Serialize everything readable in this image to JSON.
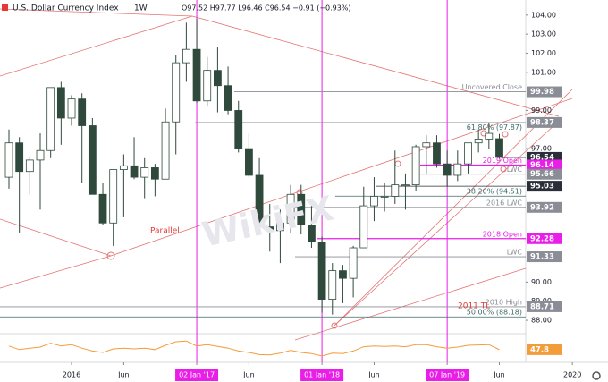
{
  "chart_data": {
    "type": "candlestick",
    "title": "U.S. Dollar Currency Index",
    "interval": "1W",
    "ohlc_text": "O97.52 H97.77 L96.46 C96.54 −0.91 (−0.93%)",
    "watermark": "WikiFX",
    "x": [
      "2015-07",
      "2015-08",
      "2015-09",
      "2015-10",
      "2015-11",
      "2015-12",
      "2016-01",
      "2016-02",
      "2016-03",
      "2016-04",
      "2016-05",
      "2016-06",
      "2016-07",
      "2016-08",
      "2016-09",
      "2016-10",
      "2016-11",
      "2016-12",
      "2017-01",
      "2017-02",
      "2017-03",
      "2017-04",
      "2017-05",
      "2017-06",
      "2017-07",
      "2017-08",
      "2017-09",
      "2017-10",
      "2017-11",
      "2017-12",
      "2018-01",
      "2018-02",
      "2018-03",
      "2018-04",
      "2018-05",
      "2018-06",
      "2018-07",
      "2018-08",
      "2018-09",
      "2018-10",
      "2018-11",
      "2018-12",
      "2019-01",
      "2019-02",
      "2019-03",
      "2019-04",
      "2019-05",
      "2019-06"
    ],
    "open": [
      95.5,
      97.3,
      95.8,
      96.4,
      96.9,
      100.2,
      98.6,
      99.6,
      98.2,
      94.6,
      93.1,
      95.9,
      96.1,
      95.5,
      96.0,
      95.4,
      98.4,
      101.5,
      102.2,
      99.5,
      101.1,
      100.3,
      99.0,
      97.0,
      95.6,
      92.9,
      92.7,
      93.1,
      94.6,
      93.0,
      92.1,
      89.1,
      90.6,
      90.2,
      91.8,
      94.0,
      94.5,
      94.5,
      95.1,
      95.1,
      97.1,
      97.3,
      96.2,
      95.6,
      96.2,
      97.3,
      97.5,
      97.52
    ],
    "high": [
      98.0,
      97.6,
      96.6,
      97.8,
      100.2,
      100.5,
      99.8,
      99.9,
      98.6,
      95.2,
      95.8,
      96.7,
      97.6,
      96.5,
      96.2,
      99.1,
      101.9,
      103.6,
      103.8,
      101.8,
      102.3,
      101.3,
      99.5,
      97.8,
      96.5,
      94.1,
      93.8,
      95.1,
      95.1,
      94.2,
      92.4,
      91.0,
      90.9,
      91.9,
      95.0,
      95.5,
      95.2,
      96.9,
      95.7,
      97.2,
      97.7,
      97.7,
      96.9,
      96.9,
      97.3,
      98.0,
      98.37,
      97.77
    ],
    "low": [
      94.9,
      92.6,
      94.6,
      93.8,
      96.5,
      97.2,
      98.2,
      95.2,
      94.6,
      93.0,
      91.9,
      93.4,
      95.4,
      94.4,
      94.5,
      95.4,
      96.7,
      100.5,
      99.4,
      99.2,
      98.9,
      98.8,
      96.8,
      95.5,
      92.7,
      91.6,
      91.0,
      92.6,
      92.5,
      91.8,
      88.4,
      88.3,
      88.9,
      89.2,
      91.8,
      93.2,
      93.7,
      94.1,
      93.8,
      94.8,
      95.7,
      96.0,
      95.0,
      95.3,
      95.7,
      96.8,
      97.0,
      96.46
    ],
    "close": [
      97.3,
      95.8,
      96.4,
      96.9,
      100.2,
      98.6,
      99.6,
      98.2,
      94.6,
      93.1,
      95.9,
      96.1,
      95.5,
      96.0,
      95.4,
      98.4,
      101.5,
      102.2,
      99.5,
      101.1,
      100.3,
      99.0,
      97.0,
      95.6,
      92.9,
      92.7,
      93.1,
      94.6,
      93.0,
      92.1,
      89.1,
      90.6,
      90.2,
      91.8,
      94.0,
      94.5,
      94.5,
      95.1,
      95.1,
      97.1,
      97.3,
      96.2,
      95.6,
      96.2,
      97.3,
      97.5,
      97.8,
      96.54
    ],
    "up_color": "#ffffff",
    "down_color": "#2f4a3c",
    "ylim": [
      87.3,
      104.6
    ],
    "yticks": [
      {
        "value": 104,
        "label": "104.00"
      },
      {
        "value": 103,
        "label": "103.00"
      },
      {
        "value": 102,
        "label": "102.00"
      },
      {
        "value": 101,
        "label": "101.00"
      },
      {
        "value": 99,
        "label": "99.00"
      },
      {
        "value": 97,
        "label": "97.00"
      },
      {
        "value": 90,
        "label": "90.00"
      },
      {
        "value": 89,
        "label": "89.00"
      },
      {
        "value": 88,
        "label": "88.00"
      }
    ],
    "xticks": [
      {
        "value": "2016-01",
        "label": "2016"
      },
      {
        "value": "2016-06",
        "label": "Jun"
      },
      {
        "value": "2017-01",
        "label": "02 Jan '17",
        "highlight": true
      },
      {
        "value": "2017-06",
        "label": "Jun"
      },
      {
        "value": "2018-01",
        "label": "01 Jan '18",
        "highlight": true
      },
      {
        "value": "2018-06",
        "label": "Jun"
      },
      {
        "value": "2019-01",
        "label": "07 Jan '19",
        "highlight": true
      },
      {
        "value": "2019-06",
        "label": "Jun"
      },
      {
        "value": "2020-01",
        "label": "2020"
      }
    ],
    "levels": [
      {
        "name": "Uncovered Close",
        "value": 99.98,
        "color": "#8a8d96"
      },
      {
        "value": 98.37,
        "color": "#8a8d96"
      },
      {
        "name": "61.80% (97.87)",
        "value": 97.87,
        "color": "#3d6b6b"
      },
      {
        "value": 96.54,
        "color": "#2a2e39"
      },
      {
        "name": "2019 Open",
        "value": 96.14,
        "color": "#e91ee8"
      },
      {
        "name": "LWC",
        "value": 95.66,
        "color": "#8a8d96"
      },
      {
        "value": 95.03,
        "color": "#2a2e39"
      },
      {
        "name": "38.20% (94.51)",
        "value": 94.51,
        "color": "#3d6b6b"
      },
      {
        "name": "2016 LWC",
        "value": 93.92,
        "color": "#8a8d96"
      },
      {
        "name": "2018 Open",
        "value": 92.28,
        "color": "#e91ee8"
      },
      {
        "name": "LWC",
        "value": 91.33,
        "color": "#8a8d96"
      },
      {
        "name": "2010 High",
        "value": 88.71,
        "color": "#8a8d96"
      },
      {
        "name": "50.00% (88.18)",
        "value": 88.18,
        "color": "#3d6b6b"
      }
    ],
    "annotations": [
      "Parallel",
      "2011 TL"
    ],
    "rsi": {
      "color": "#f39c3a",
      "ylim": [
        20,
        80
      ],
      "values": [
        58,
        48,
        52,
        55,
        66,
        58,
        62,
        52,
        44,
        40,
        50,
        52,
        50,
        52,
        48,
        60,
        70,
        72,
        58,
        62,
        57,
        52,
        44,
        40,
        34,
        33,
        38,
        46,
        40,
        37,
        30,
        38,
        37,
        44,
        56,
        58,
        57,
        58,
        56,
        62,
        62,
        56,
        52,
        55,
        60,
        61,
        62,
        47.8
      ]
    }
  }
}
